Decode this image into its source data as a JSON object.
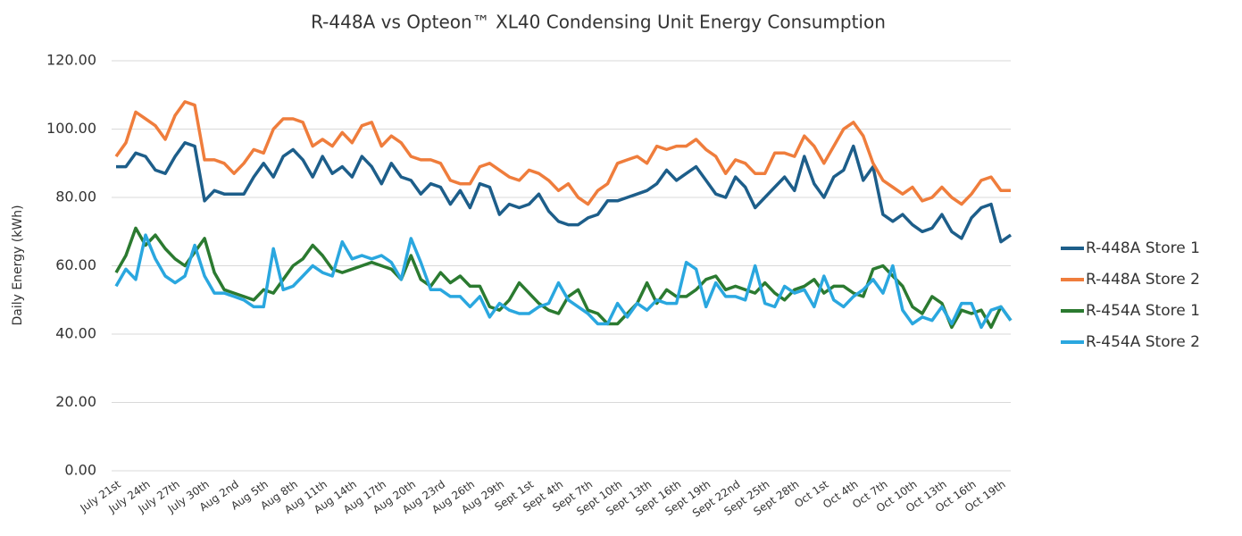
{
  "chart_data": {
    "type": "line",
    "title": "R-448A vs Opteon™ XL40 Condensing Unit Energy Consumption",
    "y_label": "Daily Energy (kWh)",
    "categories": [
      "July 21st",
      null,
      null,
      "July 24th",
      null,
      null,
      "July 27th",
      null,
      null,
      "July 30th",
      null,
      null,
      "Aug 2nd",
      null,
      null,
      "Aug 5th",
      null,
      null,
      "Aug 8th",
      null,
      null,
      "Aug 11th",
      null,
      null,
      "Aug 14th",
      null,
      null,
      "Aug 17th",
      null,
      null,
      "Aug 20th",
      null,
      null,
      "Aug 23rd",
      null,
      null,
      "Aug 26th",
      null,
      null,
      "Aug 29th",
      null,
      null,
      "Sept 1st",
      null,
      null,
      "Sept 4th",
      null,
      null,
      "Sept 7th",
      null,
      null,
      "Sept 10th",
      null,
      null,
      "Sept 13th",
      null,
      null,
      "Sept 16th",
      null,
      null,
      "Sept 19th",
      null,
      null,
      "Sept 22nd",
      null,
      null,
      "Sept 25th",
      null,
      null,
      "Sept 28th",
      null,
      null,
      "Oct 1st",
      null,
      null,
      "Oct 4th",
      null,
      null,
      "Oct 7th",
      null,
      null,
      "Oct 10th",
      null,
      null,
      "Oct 13th",
      null,
      null,
      "Oct 16th",
      null,
      null,
      "Oct 19th",
      null
    ],
    "series": [
      {
        "name": "R-448A Store 1",
        "color": "#1d5e8a",
        "values": [
          89,
          89,
          93,
          92,
          88,
          87,
          92,
          96,
          95,
          79,
          82,
          81,
          81,
          81,
          86,
          90,
          86,
          92,
          94,
          91,
          86,
          92,
          87,
          89,
          86,
          92,
          89,
          84,
          90,
          86,
          85,
          81,
          84,
          83,
          78,
          82,
          77,
          84,
          83,
          75,
          78,
          77,
          78,
          81,
          76,
          73,
          72,
          72,
          74,
          75,
          79,
          79,
          80,
          81,
          82,
          84,
          88,
          85,
          87,
          89,
          85,
          81,
          80,
          86,
          83,
          77,
          80,
          83,
          86,
          82,
          92,
          84,
          80,
          86,
          88,
          95,
          85,
          89,
          75,
          73,
          75,
          72,
          70,
          71,
          75,
          70,
          68,
          74,
          77,
          78,
          67,
          69
        ]
      },
      {
        "name": "R-448A Store 2",
        "color": "#ef7d3c",
        "values": [
          92,
          96,
          105,
          103,
          101,
          97,
          104,
          108,
          107,
          91,
          91,
          90,
          87,
          90,
          94,
          93,
          100,
          103,
          103,
          102,
          95,
          97,
          95,
          99,
          96,
          101,
          102,
          95,
          98,
          96,
          92,
          91,
          91,
          90,
          85,
          84,
          84,
          89,
          90,
          88,
          86,
          85,
          88,
          87,
          85,
          82,
          84,
          80,
          78,
          82,
          84,
          90,
          91,
          92,
          90,
          95,
          94,
          95,
          95,
          97,
          94,
          92,
          87,
          91,
          90,
          87,
          87,
          93,
          93,
          92,
          98,
          95,
          90,
          95,
          100,
          102,
          98,
          90,
          85,
          83,
          81,
          83,
          79,
          80,
          83,
          80,
          78,
          81,
          85,
          86,
          82,
          82
        ]
      },
      {
        "name": "R-454A Store 1",
        "color": "#2b7a30",
        "values": [
          58,
          63,
          71,
          66,
          69,
          65,
          62,
          60,
          64,
          68,
          58,
          53,
          52,
          51,
          50,
          53,
          52,
          56,
          60,
          62,
          66,
          63,
          59,
          58,
          59,
          60,
          61,
          60,
          59,
          56,
          63,
          56,
          54,
          58,
          55,
          57,
          54,
          54,
          48,
          47,
          50,
          55,
          52,
          49,
          47,
          46,
          51,
          53,
          47,
          46,
          43,
          43,
          46,
          49,
          55,
          49,
          53,
          51,
          51,
          53,
          56,
          57,
          53,
          54,
          53,
          52,
          55,
          52,
          50,
          53,
          54,
          56,
          52,
          54,
          54,
          52,
          51,
          59,
          60,
          57,
          54,
          48,
          46,
          51,
          49,
          42,
          47,
          46,
          47,
          42,
          48,
          44
        ]
      },
      {
        "name": "R-454A Store 2",
        "color": "#2aa7df",
        "values": [
          54,
          59,
          56,
          69,
          62,
          57,
          55,
          57,
          66,
          57,
          52,
          52,
          51,
          50,
          48,
          48,
          65,
          53,
          54,
          57,
          60,
          58,
          57,
          67,
          62,
          63,
          62,
          63,
          61,
          56,
          68,
          61,
          53,
          53,
          51,
          51,
          48,
          51,
          45,
          49,
          47,
          46,
          46,
          48,
          49,
          55,
          50,
          48,
          46,
          43,
          43,
          49,
          45,
          49,
          47,
          50,
          49,
          49,
          61,
          59,
          48,
          55,
          51,
          51,
          50,
          60,
          49,
          48,
          54,
          52,
          53,
          48,
          57,
          50,
          48,
          51,
          53,
          56,
          52,
          60,
          47,
          43,
          45,
          44,
          48,
          43,
          49,
          49,
          42,
          47,
          48,
          44
        ]
      }
    ],
    "ylim": [
      0,
      120
    ],
    "yticks": [
      {
        "value": 0,
        "label": "0.00"
      },
      {
        "value": 20,
        "label": "20.00"
      },
      {
        "value": 40,
        "label": "40.00"
      },
      {
        "value": 60,
        "label": "60.00"
      },
      {
        "value": 80,
        "label": "80.00"
      },
      {
        "value": 100,
        "label": "100.00"
      },
      {
        "value": 120,
        "label": "120.00"
      }
    ],
    "grid": true,
    "legend": "right"
  }
}
